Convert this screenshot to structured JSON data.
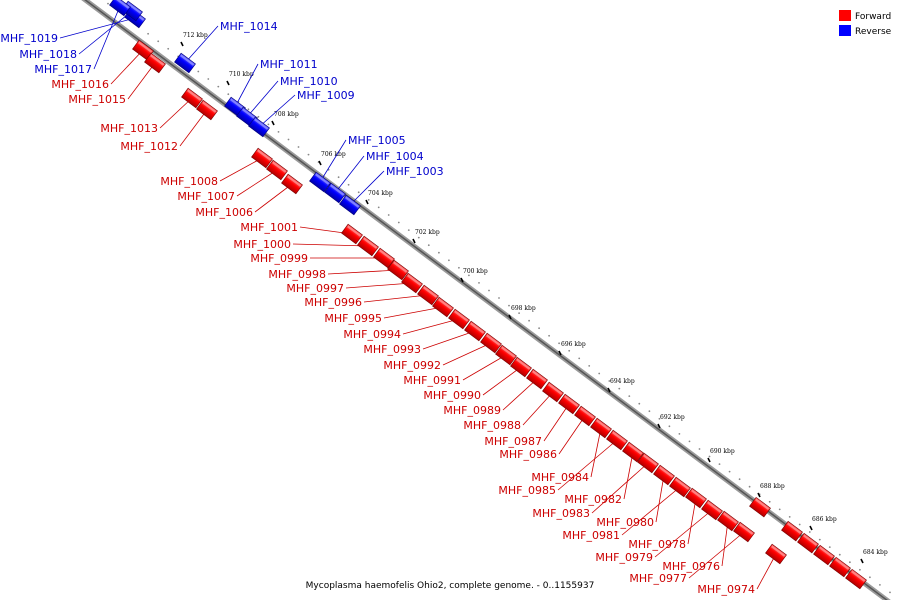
{
  "caption": "Mycoplasma haemofelis Ohio2, complete genome. - 0..1155937",
  "legend": {
    "forward_label": "Forward",
    "reverse_label": "Reverse",
    "forward_color": "#ff0000",
    "reverse_color": "#0000ff"
  },
  "colors": {
    "forward_label": "#cc0000",
    "reverse_label": "#0000cc",
    "backbone": "#555555",
    "gene_outline": "#880000"
  },
  "ticks": [
    {
      "label": "712 kbp",
      "kbp": 712
    },
    {
      "label": "710 kbp",
      "kbp": 710
    },
    {
      "label": "708 kbp",
      "kbp": 708
    },
    {
      "label": "706 kbp",
      "kbp": 706
    },
    {
      "label": "704 kbp",
      "kbp": 704
    },
    {
      "label": "702 kbp",
      "kbp": 702
    },
    {
      "label": "700 kbp",
      "kbp": 700
    },
    {
      "label": "698 kbp",
      "kbp": 698
    },
    {
      "label": "696 kbp",
      "kbp": 696
    },
    {
      "label": "694 kbp",
      "kbp": 694
    },
    {
      "label": "692 kbp",
      "kbp": 692
    },
    {
      "label": "690 kbp",
      "kbp": 690
    },
    {
      "label": "688 kbp",
      "kbp": 688
    },
    {
      "label": "686 kbp",
      "kbp": 686
    },
    {
      "label": "684 kbp",
      "kbp": 684
    }
  ],
  "genes": [
    {
      "name": "MHF_1019",
      "strand": "reverse"
    },
    {
      "name": "MHF_1018",
      "strand": "reverse"
    },
    {
      "name": "MHF_1017",
      "strand": "reverse"
    },
    {
      "name": "MHF_1016",
      "strand": "forward"
    },
    {
      "name": "MHF_1015",
      "strand": "forward"
    },
    {
      "name": "MHF_1014",
      "strand": "reverse"
    },
    {
      "name": "MHF_1013",
      "strand": "forward"
    },
    {
      "name": "MHF_1012",
      "strand": "forward"
    },
    {
      "name": "MHF_1011",
      "strand": "reverse"
    },
    {
      "name": "MHF_1010",
      "strand": "reverse"
    },
    {
      "name": "MHF_1009",
      "strand": "reverse"
    },
    {
      "name": "MHF_1008",
      "strand": "forward"
    },
    {
      "name": "MHF_1007",
      "strand": "forward"
    },
    {
      "name": "MHF_1006",
      "strand": "forward"
    },
    {
      "name": "MHF_1005",
      "strand": "reverse"
    },
    {
      "name": "MHF_1004",
      "strand": "reverse"
    },
    {
      "name": "MHF_1003",
      "strand": "reverse"
    },
    {
      "name": "MHF_1001",
      "strand": "forward"
    },
    {
      "name": "MHF_1000",
      "strand": "forward"
    },
    {
      "name": "MHF_0999",
      "strand": "forward"
    },
    {
      "name": "MHF_0998",
      "strand": "forward"
    },
    {
      "name": "MHF_0997",
      "strand": "forward"
    },
    {
      "name": "MHF_0996",
      "strand": "forward"
    },
    {
      "name": "MHF_0995",
      "strand": "forward"
    },
    {
      "name": "MHF_0994",
      "strand": "forward"
    },
    {
      "name": "MHF_0993",
      "strand": "forward"
    },
    {
      "name": "MHF_0992",
      "strand": "forward"
    },
    {
      "name": "MHF_0991",
      "strand": "forward"
    },
    {
      "name": "MHF_0990",
      "strand": "forward"
    },
    {
      "name": "MHF_0989",
      "strand": "forward"
    },
    {
      "name": "MHF_0988",
      "strand": "forward"
    },
    {
      "name": "MHF_0987",
      "strand": "forward"
    },
    {
      "name": "MHF_0986",
      "strand": "forward"
    },
    {
      "name": "MHF_0984",
      "strand": "forward"
    },
    {
      "name": "MHF_0985",
      "strand": "forward"
    },
    {
      "name": "MHF_0982",
      "strand": "forward"
    },
    {
      "name": "MHF_0983",
      "strand": "forward"
    },
    {
      "name": "MHF_0980",
      "strand": "forward"
    },
    {
      "name": "MHF_0981",
      "strand": "forward"
    },
    {
      "name": "MHF_0978",
      "strand": "forward"
    },
    {
      "name": "MHF_0979",
      "strand": "forward"
    },
    {
      "name": "MHF_0976",
      "strand": "forward"
    },
    {
      "name": "MHF_0977",
      "strand": "forward"
    },
    {
      "name": "MHF_0974",
      "strand": "forward"
    }
  ]
}
